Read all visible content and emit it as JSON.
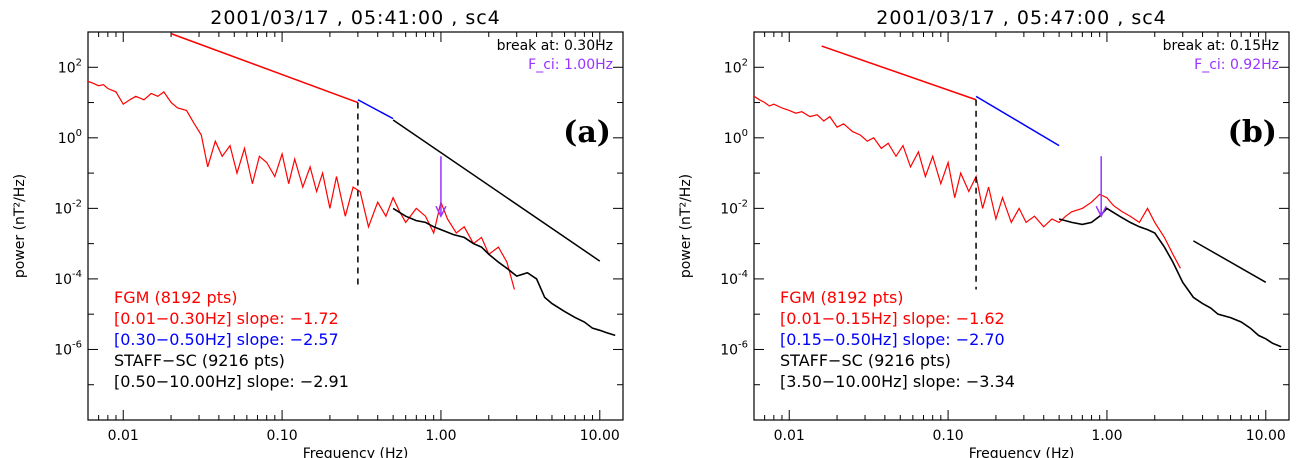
{
  "colors": {
    "fgm": "#ff0000",
    "fit_low": "#ff0000",
    "fit_mid": "#0000ff",
    "fit_high": "#000000",
    "staff": "#000000",
    "fci": "#9933ff",
    "axes": "#000000"
  },
  "chart_data": [
    {
      "type": "line",
      "title": "2001/03/17 , 05:41:00 , sc4",
      "panel_label": "(a)",
      "xlabel": "Frequency (Hz)",
      "ylabel": "power (nT²/Hz)",
      "xscale": "log",
      "yscale": "log",
      "xlim": [
        0.006,
        14
      ],
      "ylim": [
        1e-08,
        1000
      ],
      "xticks": [
        0.01,
        0.1,
        1,
        10
      ],
      "xtick_labels": [
        "0.01",
        "0.10",
        "1.00",
        "10.00"
      ],
      "yticks": [
        1e-06,
        0.0001,
        0.01,
        1,
        100
      ],
      "ytick_labels": [
        {
          "base": "10",
          "exp": "-6"
        },
        {
          "base": "10",
          "exp": "-4"
        },
        {
          "base": "10",
          "exp": "-2"
        },
        {
          "base": "10",
          "exp": "0"
        },
        {
          "base": "10",
          "exp": "2"
        }
      ],
      "break_text": "break at: 0.30Hz",
      "fci_text": "F_ci: 1.00Hz",
      "break_freq": 0.3,
      "fci_freq": 1.0,
      "legend": [
        {
          "text": "FGM (8192 pts)",
          "color_key": "fgm"
        },
        {
          "text": "[0.01−0.30Hz] slope: −1.72",
          "color_key": "fit_low"
        },
        {
          "text": "[0.30−0.50Hz] slope: −2.57",
          "color_key": "fit_mid"
        },
        {
          "text": "STAFF−SC (9216 pts)",
          "color_key": "staff"
        },
        {
          "text": "[0.50−10.00Hz] slope: −2.91",
          "color_key": "fit_high"
        }
      ],
      "fits": [
        {
          "color_key": "fit_low",
          "x": [
            0.02,
            0.3
          ],
          "y": [
            900,
            10
          ]
        },
        {
          "color_key": "fit_mid",
          "x": [
            0.3,
            0.5
          ],
          "y": [
            12,
            3.5
          ]
        },
        {
          "color_key": "fit_high",
          "x": [
            0.5,
            10.0
          ],
          "y": [
            3.2,
            0.00032
          ]
        }
      ],
      "fgm_spectrum": {
        "color_key": "fgm",
        "x": [
          0.006,
          0.0065,
          0.007,
          0.0075,
          0.008,
          0.009,
          0.01,
          0.011,
          0.012,
          0.0135,
          0.015,
          0.0165,
          0.018,
          0.02,
          0.022,
          0.025,
          0.028,
          0.031,
          0.034,
          0.038,
          0.042,
          0.047,
          0.052,
          0.058,
          0.065,
          0.072,
          0.08,
          0.09,
          0.1,
          0.11,
          0.12,
          0.135,
          0.15,
          0.165,
          0.18,
          0.2,
          0.22,
          0.25,
          0.28,
          0.31,
          0.35,
          0.4,
          0.45,
          0.5,
          0.55,
          0.6,
          0.7,
          0.8,
          0.9,
          1.0,
          1.1,
          1.25,
          1.4,
          1.6,
          1.8,
          2.0,
          2.3,
          2.6,
          2.9
        ],
        "y": [
          40,
          35,
          30,
          32,
          25,
          20,
          9,
          12,
          15,
          12,
          18,
          15,
          20,
          10,
          7,
          6,
          2.5,
          1.2,
          0.15,
          0.8,
          0.3,
          0.6,
          0.1,
          0.5,
          0.05,
          0.3,
          0.2,
          0.08,
          0.35,
          0.05,
          0.25,
          0.04,
          0.15,
          0.03,
          0.1,
          0.01,
          0.08,
          0.006,
          0.04,
          0.03,
          0.003,
          0.015,
          0.006,
          0.02,
          0.008,
          0.004,
          0.01,
          0.006,
          0.002,
          0.015,
          0.005,
          0.002,
          0.003,
          0.001,
          0.0015,
          0.0005,
          0.0008,
          0.0003,
          5e-05
        ]
      },
      "staff_spectrum": {
        "color_key": "staff",
        "x": [
          0.5,
          0.6,
          0.7,
          0.8,
          0.9,
          1.0,
          1.2,
          1.4,
          1.6,
          1.8,
          2.0,
          2.3,
          2.6,
          3.0,
          3.5,
          4.0,
          4.5,
          5.0,
          6.0,
          7.0,
          8.0,
          9.0,
          10.0,
          11.0,
          12.5
        ],
        "y": [
          0.01,
          0.006,
          0.0045,
          0.004,
          0.003,
          0.0025,
          0.0018,
          0.0015,
          0.001,
          0.0008,
          0.0005,
          0.0003,
          0.0002,
          0.00012,
          0.00015,
          0.0001,
          3e-05,
          2e-05,
          1.2e-05,
          8e-06,
          6e-06,
          4e-06,
          3.5e-06,
          3e-06,
          2.5e-06
        ]
      }
    },
    {
      "type": "line",
      "title": "2001/03/17 , 05:47:00 , sc4",
      "panel_label": "(b)",
      "xlabel": "Frequency (Hz)",
      "ylabel": "power (nT²/Hz)",
      "xscale": "log",
      "yscale": "log",
      "xlim": [
        0.006,
        14
      ],
      "ylim": [
        1e-08,
        1000
      ],
      "xticks": [
        0.01,
        0.1,
        1,
        10
      ],
      "xtick_labels": [
        "0.01",
        "0.10",
        "1.00",
        "10.00"
      ],
      "yticks": [
        1e-06,
        0.0001,
        0.01,
        1,
        100
      ],
      "ytick_labels": [
        {
          "base": "10",
          "exp": "-6"
        },
        {
          "base": "10",
          "exp": "-4"
        },
        {
          "base": "10",
          "exp": "-2"
        },
        {
          "base": "10",
          "exp": "0"
        },
        {
          "base": "10",
          "exp": "2"
        }
      ],
      "break_text": "break at: 0.15Hz",
      "fci_text": "F_ci: 0.92Hz",
      "break_freq": 0.15,
      "fci_freq": 0.92,
      "legend": [
        {
          "text": "FGM (8192 pts)",
          "color_key": "fgm"
        },
        {
          "text": "[0.01−0.15Hz] slope: −1.62",
          "color_key": "fit_low"
        },
        {
          "text": "[0.15−0.50Hz] slope: −2.70",
          "color_key": "fit_mid"
        },
        {
          "text": "STAFF−SC (9216 pts)",
          "color_key": "staff"
        },
        {
          "text": "[3.50−10.00Hz] slope: −3.34",
          "color_key": "fit_high"
        }
      ],
      "fits": [
        {
          "color_key": "fit_low",
          "x": [
            0.016,
            0.15
          ],
          "y": [
            400,
            12
          ]
        },
        {
          "color_key": "fit_mid",
          "x": [
            0.15,
            0.5
          ],
          "y": [
            15,
            0.6
          ]
        },
        {
          "color_key": "fit_high",
          "x": [
            3.5,
            10.0
          ],
          "y": [
            0.0012,
            8e-05
          ]
        }
      ],
      "fgm_spectrum": {
        "color_key": "fgm",
        "x": [
          0.006,
          0.0065,
          0.007,
          0.0075,
          0.008,
          0.009,
          0.01,
          0.011,
          0.012,
          0.0135,
          0.015,
          0.0165,
          0.018,
          0.02,
          0.022,
          0.025,
          0.028,
          0.031,
          0.034,
          0.038,
          0.042,
          0.047,
          0.052,
          0.058,
          0.065,
          0.072,
          0.08,
          0.09,
          0.1,
          0.11,
          0.12,
          0.135,
          0.15,
          0.165,
          0.18,
          0.2,
          0.22,
          0.25,
          0.28,
          0.31,
          0.35,
          0.4,
          0.45,
          0.5,
          0.55,
          0.6,
          0.7,
          0.8,
          0.9,
          1.0,
          1.1,
          1.25,
          1.4,
          1.6,
          1.8,
          2.0,
          2.3,
          2.6,
          2.9
        ],
        "y": [
          15,
          12,
          10,
          8,
          9,
          7,
          6,
          5,
          5.5,
          4,
          4.5,
          3,
          4,
          2,
          2.5,
          1.5,
          1.2,
          0.8,
          1.0,
          0.5,
          0.7,
          0.3,
          0.6,
          0.15,
          0.4,
          0.08,
          0.3,
          0.05,
          0.2,
          0.02,
          0.1,
          0.03,
          0.08,
          0.01,
          0.04,
          0.005,
          0.02,
          0.004,
          0.01,
          0.004,
          0.006,
          0.003,
          0.005,
          0.004,
          0.006,
          0.008,
          0.01,
          0.015,
          0.025,
          0.02,
          0.012,
          0.008,
          0.006,
          0.004,
          0.01,
          0.004,
          0.0015,
          0.0005,
          0.0002
        ]
      },
      "staff_spectrum": {
        "color_key": "staff",
        "x": [
          0.5,
          0.6,
          0.7,
          0.8,
          0.9,
          1.0,
          1.2,
          1.4,
          1.6,
          1.8,
          2.0,
          2.3,
          2.6,
          3.0,
          3.5,
          4.0,
          4.5,
          5.0,
          6.0,
          7.0,
          8.0,
          9.0,
          10.0,
          11.0,
          12.5
        ],
        "y": [
          0.005,
          0.004,
          0.0035,
          0.004,
          0.006,
          0.01,
          0.006,
          0.004,
          0.003,
          0.0025,
          0.002,
          0.0008,
          0.0003,
          8e-05,
          3e-05,
          2e-05,
          1.5e-05,
          1e-05,
          8e-06,
          6e-06,
          4e-06,
          2.5e-06,
          2e-06,
          1.5e-06,
          1.2e-06
        ]
      }
    }
  ]
}
